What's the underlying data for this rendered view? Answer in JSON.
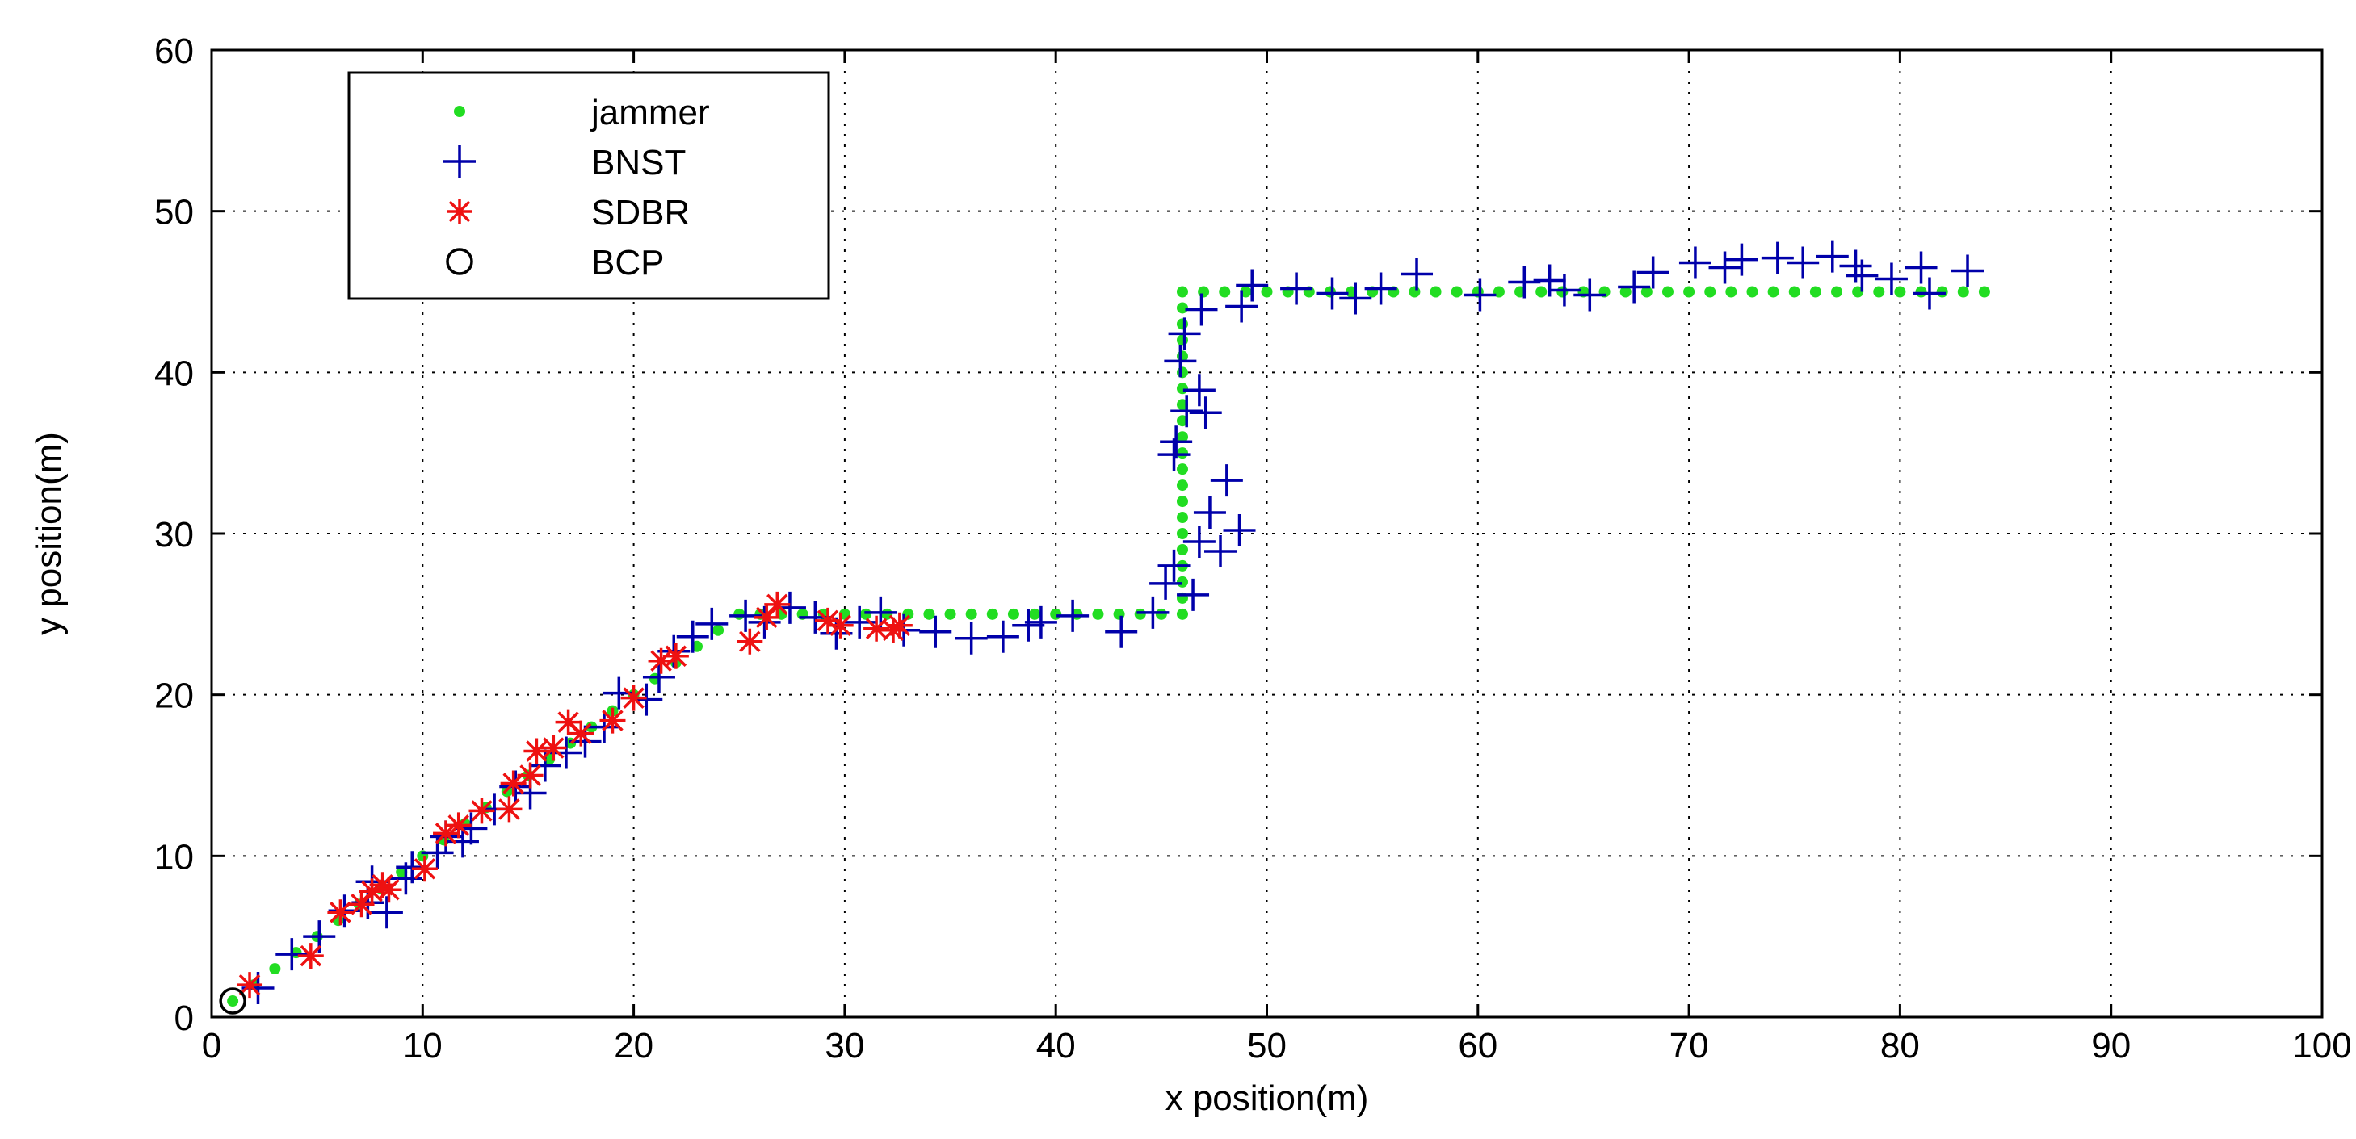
{
  "chart_data": {
    "type": "scatter",
    "title": "",
    "xlabel": "x position(m)",
    "ylabel": "y position(m)",
    "xlim": [
      0,
      100
    ],
    "ylim": [
      0,
      60
    ],
    "xticks": [
      0,
      10,
      20,
      30,
      40,
      50,
      60,
      70,
      80,
      90,
      100
    ],
    "yticks": [
      0,
      10,
      20,
      30,
      40,
      50,
      60
    ],
    "grid": true,
    "legend_position": "top-left",
    "series": [
      {
        "name": "jammer",
        "marker": "dot",
        "color": "#22dd22",
        "points": [
          [
            1,
            1
          ],
          [
            2,
            2
          ],
          [
            3,
            3
          ],
          [
            4,
            4
          ],
          [
            5,
            5
          ],
          [
            6,
            6
          ],
          [
            7,
            7
          ],
          [
            8,
            8
          ],
          [
            9,
            9
          ],
          [
            10,
            10
          ],
          [
            11,
            11
          ],
          [
            12,
            12
          ],
          [
            13,
            13
          ],
          [
            14,
            14
          ],
          [
            15,
            15
          ],
          [
            16,
            16
          ],
          [
            17,
            17
          ],
          [
            18,
            18
          ],
          [
            19,
            19
          ],
          [
            20,
            20
          ],
          [
            21,
            21
          ],
          [
            22,
            22
          ],
          [
            23,
            23
          ],
          [
            24,
            24
          ],
          [
            25,
            25
          ],
          [
            26,
            25
          ],
          [
            27,
            25
          ],
          [
            28,
            25
          ],
          [
            29,
            25
          ],
          [
            30,
            25
          ],
          [
            31,
            25
          ],
          [
            32,
            25
          ],
          [
            33,
            25
          ],
          [
            34,
            25
          ],
          [
            35,
            25
          ],
          [
            36,
            25
          ],
          [
            37,
            25
          ],
          [
            38,
            25
          ],
          [
            39,
            25
          ],
          [
            40,
            25
          ],
          [
            41,
            25
          ],
          [
            42,
            25
          ],
          [
            43,
            25
          ],
          [
            44,
            25
          ],
          [
            45,
            25
          ],
          [
            46,
            25
          ],
          [
            46,
            26
          ],
          [
            46,
            27
          ],
          [
            46,
            28
          ],
          [
            46,
            29
          ],
          [
            46,
            30
          ],
          [
            46,
            31
          ],
          [
            46,
            32
          ],
          [
            46,
            33
          ],
          [
            46,
            34
          ],
          [
            46,
            35
          ],
          [
            46,
            36
          ],
          [
            46,
            37
          ],
          [
            46,
            38
          ],
          [
            46,
            39
          ],
          [
            46,
            40
          ],
          [
            46,
            41
          ],
          [
            46,
            42
          ],
          [
            46,
            43
          ],
          [
            46,
            44
          ],
          [
            46,
            45
          ],
          [
            47,
            45
          ],
          [
            48,
            45
          ],
          [
            49,
            45
          ],
          [
            50,
            45
          ],
          [
            51,
            45
          ],
          [
            52,
            45
          ],
          [
            53,
            45
          ],
          [
            54,
            45
          ],
          [
            55,
            45
          ],
          [
            56,
            45
          ],
          [
            57,
            45
          ],
          [
            58,
            45
          ],
          [
            59,
            45
          ],
          [
            60,
            45
          ],
          [
            61,
            45
          ],
          [
            62,
            45
          ],
          [
            63,
            45
          ],
          [
            64,
            45
          ],
          [
            65,
            45
          ],
          [
            66,
            45
          ],
          [
            67,
            45
          ],
          [
            68,
            45
          ],
          [
            69,
            45
          ],
          [
            70,
            45
          ],
          [
            71,
            45
          ],
          [
            72,
            45
          ],
          [
            73,
            45
          ],
          [
            74,
            45
          ],
          [
            75,
            45
          ],
          [
            76,
            45
          ],
          [
            77,
            45
          ],
          [
            78,
            45
          ],
          [
            79,
            45
          ],
          [
            80,
            45
          ],
          [
            81,
            45
          ],
          [
            82,
            45
          ],
          [
            83,
            45
          ],
          [
            84,
            45
          ]
        ]
      },
      {
        "name": "BNST",
        "marker": "plus",
        "color": "#0000aa",
        "points": [
          [
            2.2,
            1.8
          ],
          [
            3.8,
            3.9
          ],
          [
            5.1,
            5.0
          ],
          [
            6.3,
            6.6
          ],
          [
            7.4,
            7.1
          ],
          [
            7.6,
            8.4
          ],
          [
            8.3,
            6.5
          ],
          [
            9.2,
            8.6
          ],
          [
            9.5,
            9.3
          ],
          [
            10.7,
            10.2
          ],
          [
            11.1,
            11.2
          ],
          [
            11.9,
            10.9
          ],
          [
            12.3,
            11.7
          ],
          [
            13.4,
            12.9
          ],
          [
            14.4,
            14.3
          ],
          [
            15.1,
            13.9
          ],
          [
            15.8,
            15.6
          ],
          [
            16.8,
            16.4
          ],
          [
            17.7,
            17.1
          ],
          [
            18.6,
            18.0
          ],
          [
            19.3,
            20.1
          ],
          [
            20.6,
            19.7
          ],
          [
            21.2,
            21.1
          ],
          [
            21.9,
            22.7
          ],
          [
            22.8,
            23.6
          ],
          [
            23.7,
            24.4
          ],
          [
            25.3,
            24.9
          ],
          [
            26.2,
            24.5
          ],
          [
            27.4,
            25.4
          ],
          [
            28.6,
            24.8
          ],
          [
            29.6,
            23.8
          ],
          [
            30.7,
            24.5
          ],
          [
            31.7,
            25.1
          ],
          [
            32.8,
            24.0
          ],
          [
            34.3,
            23.9
          ],
          [
            36.0,
            23.5
          ],
          [
            37.5,
            23.6
          ],
          [
            38.7,
            24.3
          ],
          [
            39.3,
            24.5
          ],
          [
            40.8,
            24.9
          ],
          [
            43.1,
            23.9
          ],
          [
            44.6,
            25.1
          ],
          [
            45.2,
            26.9
          ],
          [
            45.6,
            28.0
          ],
          [
            46.5,
            26.2
          ],
          [
            46.8,
            29.5
          ],
          [
            47.3,
            31.3
          ],
          [
            47.8,
            28.9
          ],
          [
            48.1,
            33.3
          ],
          [
            48.7,
            30.2
          ],
          [
            45.6,
            34.9
          ],
          [
            45.7,
            35.7
          ],
          [
            46.2,
            37.6
          ],
          [
            46.8,
            38.9
          ],
          [
            47.1,
            37.5
          ],
          [
            45.9,
            40.7
          ],
          [
            46.1,
            42.4
          ],
          [
            46.9,
            43.9
          ],
          [
            48.8,
            44.1
          ],
          [
            49.3,
            45.4
          ],
          [
            51.4,
            45.2
          ],
          [
            53.1,
            44.9
          ],
          [
            54.2,
            44.6
          ],
          [
            55.4,
            45.2
          ],
          [
            57.1,
            46.1
          ],
          [
            60.1,
            44.8
          ],
          [
            62.2,
            45.6
          ],
          [
            63.4,
            45.7
          ],
          [
            64.1,
            45.1
          ],
          [
            65.3,
            44.8
          ],
          [
            67.4,
            45.3
          ],
          [
            68.3,
            46.2
          ],
          [
            70.3,
            46.8
          ],
          [
            71.7,
            46.5
          ],
          [
            72.5,
            47.0
          ],
          [
            74.2,
            47.1
          ],
          [
            75.4,
            46.8
          ],
          [
            76.8,
            47.2
          ],
          [
            77.9,
            46.6
          ],
          [
            78.2,
            46.0
          ],
          [
            79.6,
            45.8
          ],
          [
            81.0,
            46.5
          ],
          [
            81.4,
            44.9
          ],
          [
            83.2,
            46.3
          ]
        ]
      },
      {
        "name": "SDBR",
        "marker": "star",
        "color": "#ee1111",
        "points": [
          [
            1.8,
            2.0
          ],
          [
            4.7,
            3.8
          ],
          [
            6.1,
            6.5
          ],
          [
            7.1,
            7.0
          ],
          [
            7.6,
            7.8
          ],
          [
            8.1,
            8.2
          ],
          [
            8.4,
            7.9
          ],
          [
            10.1,
            9.2
          ],
          [
            11.1,
            11.4
          ],
          [
            11.7,
            11.9
          ],
          [
            12.8,
            12.8
          ],
          [
            14.1,
            12.9
          ],
          [
            14.3,
            14.5
          ],
          [
            15.1,
            15.0
          ],
          [
            15.4,
            16.5
          ],
          [
            16.2,
            16.7
          ],
          [
            16.9,
            18.3
          ],
          [
            17.5,
            17.6
          ],
          [
            19.0,
            18.4
          ],
          [
            20.0,
            19.8
          ],
          [
            21.3,
            22.1
          ],
          [
            22.0,
            22.4
          ],
          [
            25.5,
            23.3
          ],
          [
            26.3,
            24.8
          ],
          [
            26.8,
            25.6
          ],
          [
            29.2,
            24.6
          ],
          [
            29.8,
            24.3
          ],
          [
            31.5,
            24.1
          ],
          [
            32.3,
            24.0
          ],
          [
            32.6,
            24.3
          ]
        ]
      },
      {
        "name": "BCP",
        "marker": "circle",
        "color": "#000000",
        "points": [
          [
            1,
            1
          ]
        ]
      }
    ]
  }
}
